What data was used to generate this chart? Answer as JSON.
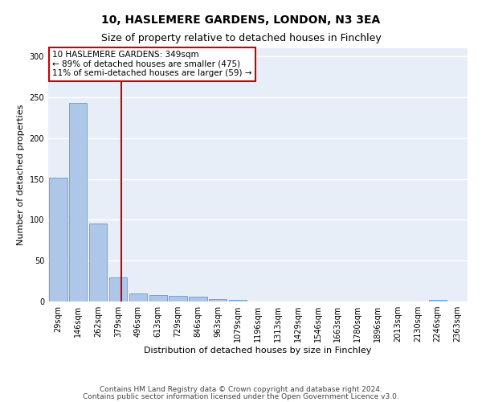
{
  "title": "10, HASLEMERE GARDENS, LONDON, N3 3EA",
  "subtitle": "Size of property relative to detached houses in Finchley",
  "xlabel": "Distribution of detached houses by size in Finchley",
  "ylabel": "Number of detached properties",
  "bin_labels": [
    "29sqm",
    "146sqm",
    "262sqm",
    "379sqm",
    "496sqm",
    "613sqm",
    "729sqm",
    "846sqm",
    "963sqm",
    "1079sqm",
    "1196sqm",
    "1313sqm",
    "1429sqm",
    "1546sqm",
    "1663sqm",
    "1780sqm",
    "1896sqm",
    "2013sqm",
    "2130sqm",
    "2246sqm",
    "2363sqm"
  ],
  "bar_values": [
    152,
    243,
    95,
    30,
    10,
    8,
    7,
    6,
    3,
    2,
    0,
    0,
    0,
    0,
    0,
    0,
    0,
    0,
    0,
    2,
    0
  ],
  "bar_color": "#aec6e8",
  "bar_edge_color": "#5a9fd4",
  "vline_x": 3.18,
  "vline_color": "#cc0000",
  "annotation_text": "10 HASLEMERE GARDENS: 349sqm\n← 89% of detached houses are smaller (475)\n11% of semi-detached houses are larger (59) →",
  "annotation_box_color": "#ffffff",
  "annotation_box_edge_color": "#cc0000",
  "ylim": [
    0,
    310
  ],
  "yticks": [
    0,
    50,
    100,
    150,
    200,
    250,
    300
  ],
  "background_color": "#e8eef7",
  "grid_color": "#ffffff",
  "footer_line1": "Contains HM Land Registry data © Crown copyright and database right 2024.",
  "footer_line2": "Contains public sector information licensed under the Open Government Licence v3.0.",
  "title_fontsize": 10,
  "subtitle_fontsize": 9,
  "xlabel_fontsize": 8,
  "ylabel_fontsize": 8,
  "tick_fontsize": 7,
  "annotation_fontsize": 7.5,
  "footer_fontsize": 6.5
}
